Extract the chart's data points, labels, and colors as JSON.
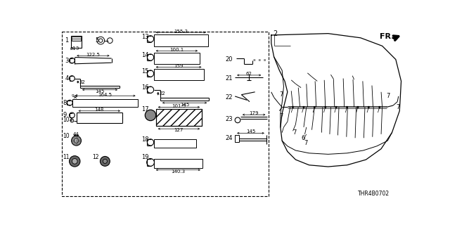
{
  "bg_color": "#ffffff",
  "fig_width": 6.4,
  "fig_height": 3.2,
  "dpi": 100,
  "diagram_code": "THR4B0702"
}
